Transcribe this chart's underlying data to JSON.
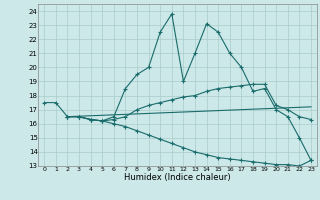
{
  "background_color": "#cce8e8",
  "grid_color": "#aacccc",
  "line_color": "#1a6b6b",
  "xlabel": "Humidex (Indice chaleur)",
  "xlim": [
    -0.5,
    23.5
  ],
  "ylim": [
    13,
    24.5
  ],
  "yticks": [
    13,
    14,
    15,
    16,
    17,
    18,
    19,
    20,
    21,
    22,
    23,
    24
  ],
  "xticks": [
    0,
    1,
    2,
    3,
    4,
    5,
    6,
    7,
    8,
    9,
    10,
    11,
    12,
    13,
    14,
    15,
    16,
    17,
    18,
    19,
    20,
    21,
    22,
    23
  ],
  "line1_x": [
    0,
    1,
    2,
    3,
    4,
    5,
    6,
    7,
    8,
    9,
    10,
    11,
    12,
    13,
    14,
    15,
    16,
    17,
    18,
    19,
    20,
    21,
    22,
    23
  ],
  "line1_y": [
    17.5,
    17.5,
    16.5,
    16.5,
    16.3,
    16.2,
    16.5,
    18.5,
    19.5,
    20.0,
    22.5,
    23.8,
    19.0,
    21.0,
    23.1,
    22.5,
    21.0,
    20.0,
    18.3,
    18.5,
    17.0,
    16.5,
    15.0,
    13.4
  ],
  "line2_x": [
    2,
    3,
    4,
    5,
    6,
    7,
    8,
    9,
    10,
    11,
    12,
    13,
    14,
    15,
    16,
    17,
    18,
    19,
    20,
    21,
    22,
    23
  ],
  "line2_y": [
    16.5,
    16.5,
    16.3,
    16.2,
    16.3,
    16.5,
    17.0,
    17.3,
    17.5,
    17.7,
    17.9,
    18.0,
    18.3,
    18.5,
    18.6,
    18.7,
    18.8,
    18.8,
    17.3,
    17.0,
    16.5,
    16.3
  ],
  "line3_x": [
    2,
    23
  ],
  "line3_y": [
    16.5,
    17.2
  ],
  "line4_x": [
    2,
    3,
    4,
    5,
    6,
    7,
    8,
    9,
    10,
    11,
    12,
    13,
    14,
    15,
    16,
    17,
    18,
    19,
    20,
    21,
    22,
    23
  ],
  "line4_y": [
    16.5,
    16.5,
    16.3,
    16.2,
    16.0,
    15.8,
    15.5,
    15.2,
    14.9,
    14.6,
    14.3,
    14.0,
    13.8,
    13.6,
    13.5,
    13.4,
    13.3,
    13.2,
    13.1,
    13.1,
    13.0,
    13.4
  ]
}
